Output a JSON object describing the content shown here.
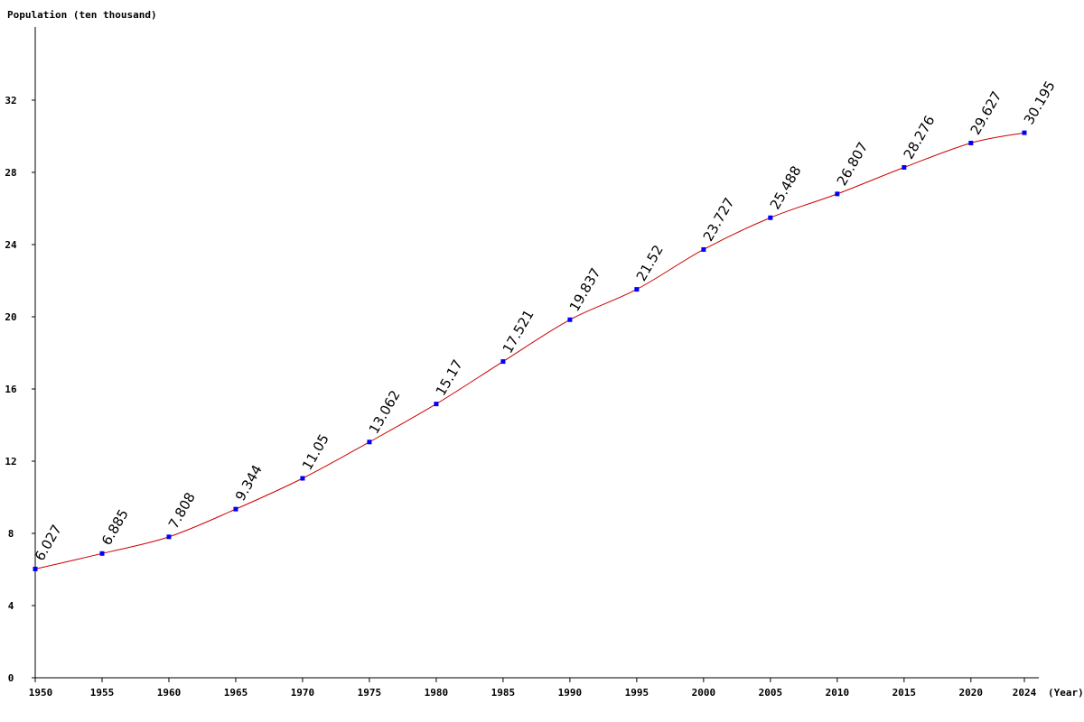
{
  "chart_data": {
    "type": "line",
    "ylabel": "Population (ten thousand)",
    "xlabel": "(Year)",
    "ylim": [
      0,
      36
    ],
    "y_ticks": [
      0,
      4,
      8,
      12,
      16,
      20,
      24,
      28,
      32
    ],
    "x_ticks": [
      1950,
      1955,
      1960,
      1965,
      1970,
      1975,
      1980,
      1985,
      1990,
      1995,
      2000,
      2005,
      2010,
      2015,
      2020,
      2024
    ],
    "series": [
      {
        "x": [
          1950,
          1955,
          1960,
          1965,
          1970,
          1975,
          1980,
          1985,
          1990,
          1995,
          2000,
          2005,
          2010,
          2015,
          2020,
          2024
        ],
        "values": [
          6.027,
          6.885,
          7.808,
          9.344,
          11.05,
          13.062,
          15.17,
          17.521,
          19.837,
          21.52,
          23.727,
          25.488,
          26.807,
          28.276,
          29.627,
          30.195
        ],
        "labels": [
          "6.027",
          "6.885",
          "7.808",
          "9.344",
          "11.05",
          "13.062",
          "15.17",
          "17.521",
          "19.837",
          "21.52",
          "23.727",
          "25.488",
          "26.807",
          "28.276",
          "29.627",
          "30.195"
        ]
      }
    ],
    "line_color": "#cc0000",
    "marker_color": "#0000ff",
    "axis_color": "#000000",
    "grid": false
  }
}
